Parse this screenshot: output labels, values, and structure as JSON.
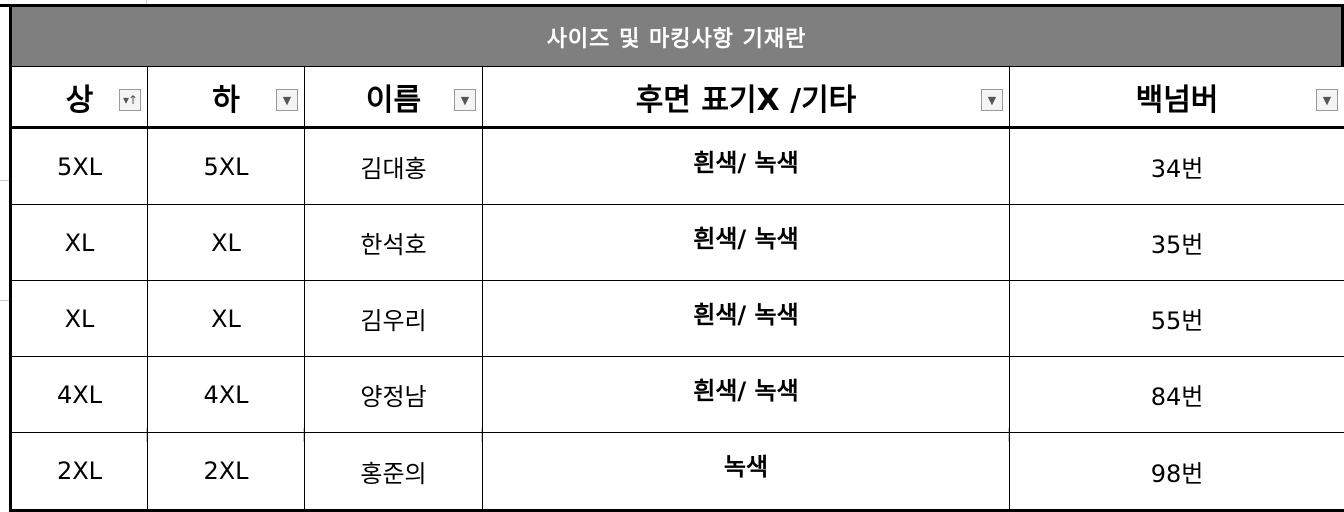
{
  "banner": {
    "title": "사이즈 및 마킹사항 기재란"
  },
  "columns": [
    {
      "label": "상",
      "filter_icon": "sort-ascending-filter-icon",
      "filter_glyph": "▾↑"
    },
    {
      "label": "하",
      "filter_icon": "filter-dropdown-icon",
      "filter_glyph": "▼"
    },
    {
      "label": "이름",
      "filter_icon": "filter-dropdown-icon",
      "filter_glyph": "▼"
    },
    {
      "label": "후면 표기X /기타",
      "filter_icon": "filter-dropdown-icon",
      "filter_glyph": "▼"
    },
    {
      "label": "백넘버",
      "filter_icon": "filter-dropdown-icon",
      "filter_glyph": "▼"
    }
  ],
  "rows": [
    {
      "top": "5XL",
      "bottom": "5XL",
      "name": "김대홍",
      "back": "흰색/ 녹색",
      "number": "34번"
    },
    {
      "top": "XL",
      "bottom": "XL",
      "name": "한석호",
      "back": "흰색/ 녹색",
      "number": "35번"
    },
    {
      "top": "XL",
      "bottom": "XL",
      "name": "김우리",
      "back": "흰색/ 녹색",
      "number": "55번"
    },
    {
      "top": "4XL",
      "bottom": "4XL",
      "name": "양정남",
      "back": "흰색/ 녹색",
      "number": "84번"
    },
    {
      "top": "2XL",
      "bottom": "2XL",
      "name": "홍준의",
      "back": "녹색",
      "number": "98번"
    }
  ],
  "colors": {
    "banner_bg": "#7f7f7f",
    "banner_text": "#ffffff",
    "border": "#000000"
  }
}
